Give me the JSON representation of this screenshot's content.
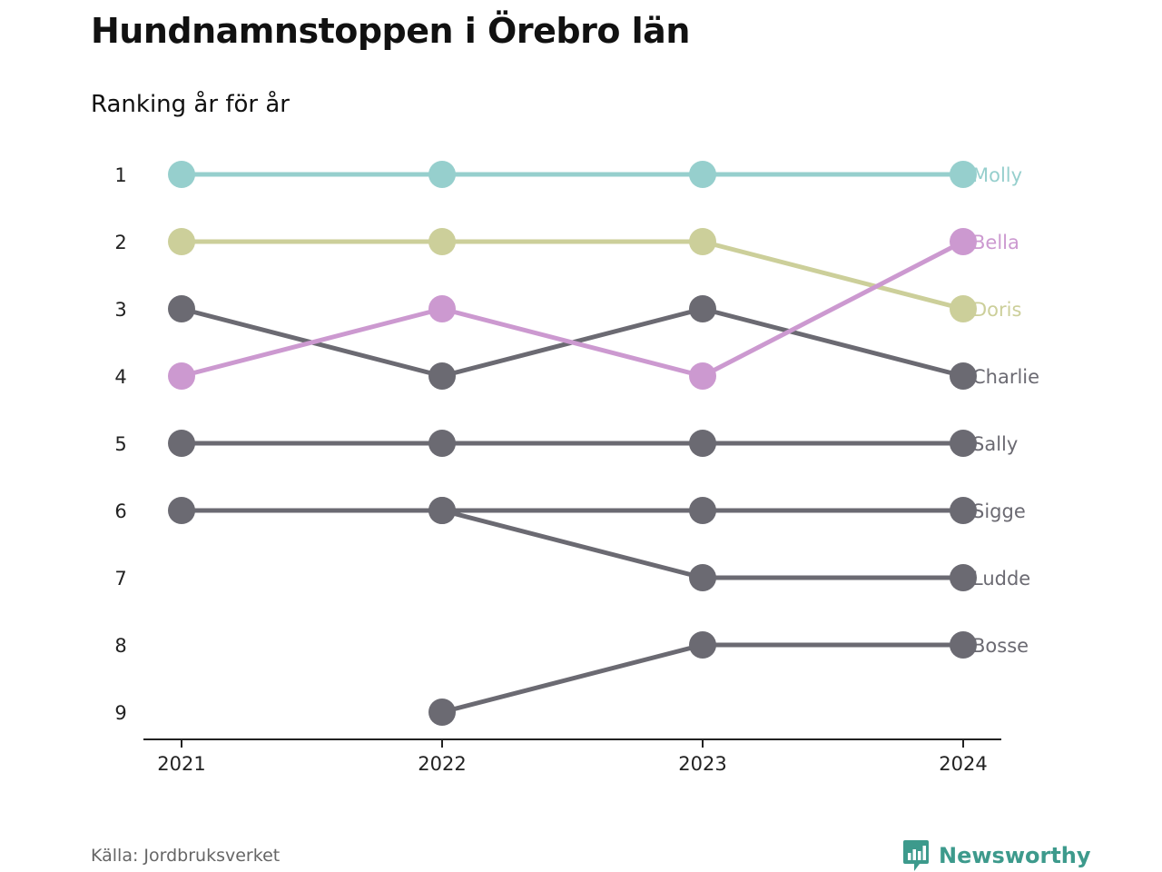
{
  "title": "Hundnamnstoppen i Örebro län",
  "subtitle": "Ranking år för år",
  "source": "Källa: Jordbruksverket",
  "brand": {
    "name": "Newsworthy",
    "icon": "bar-chart-speech-bubble-icon",
    "color": "#3d9a8c"
  },
  "chart_data": {
    "type": "line",
    "x": [
      "2021",
      "2022",
      "2023",
      "2024"
    ],
    "y_ticks": [
      1,
      2,
      3,
      4,
      5,
      6,
      7,
      8,
      9
    ],
    "ylim": [
      1,
      9
    ],
    "y_inverted": true,
    "grid": false,
    "legend": "direct labels at line ends",
    "series": [
      {
        "name": "Sigge",
        "color": "#6b6a72",
        "values": [
          6,
          6,
          6,
          6
        ]
      },
      {
        "name": "Sally",
        "color": "#6b6a72",
        "values": [
          5,
          5,
          5,
          5
        ]
      },
      {
        "name": "Ludde",
        "color": "#6b6a72",
        "values": [
          null,
          6,
          7,
          7
        ]
      },
      {
        "name": "Bosse",
        "color": "#6b6a72",
        "values": [
          null,
          9,
          8,
          8
        ]
      },
      {
        "name": "Charlie",
        "color": "#6b6a72",
        "values": [
          3,
          4,
          3,
          4
        ]
      },
      {
        "name": "Doris",
        "color": "#cccf9a",
        "values": [
          2,
          2,
          2,
          3
        ]
      },
      {
        "name": "Molly",
        "color": "#96cfcd",
        "values": [
          1,
          1,
          1,
          1
        ]
      },
      {
        "name": "Bella",
        "color": "#cc99d0",
        "values": [
          4,
          3,
          4,
          2
        ]
      }
    ]
  }
}
